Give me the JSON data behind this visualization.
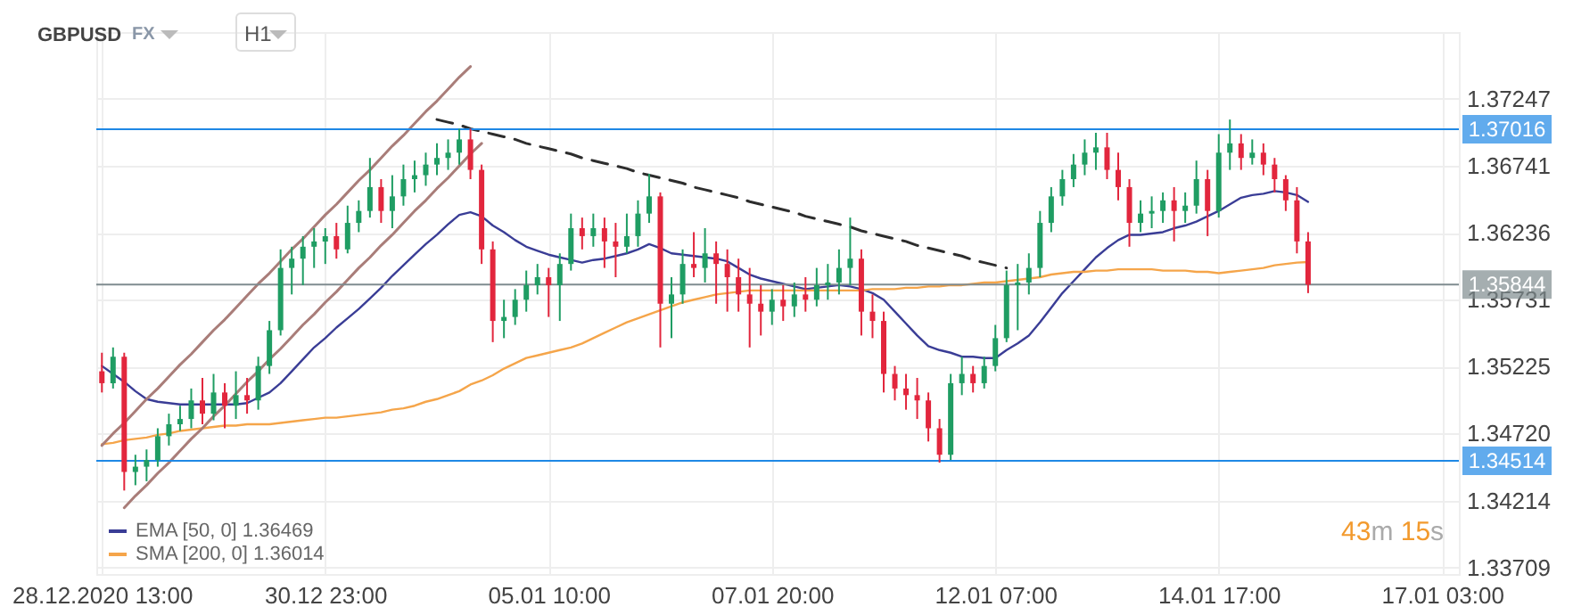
{
  "chart_data": {
    "type": "candlestick",
    "title": "GBPUSD",
    "annotations": [
      "FX",
      "H1",
      "43m 15s"
    ],
    "categories": [
      "28.12.2020 13:00",
      null,
      null,
      null,
      null,
      null,
      null,
      null,
      null,
      null,
      null,
      null,
      null,
      null,
      null,
      null,
      null,
      null,
      null,
      null,
      "30.12 23:00",
      null,
      null,
      null,
      null,
      null,
      null,
      null,
      null,
      null,
      null,
      null,
      null,
      null,
      null,
      null,
      null,
      null,
      null,
      null,
      "05.01 10:00",
      null,
      null,
      null,
      null,
      null,
      null,
      null,
      null,
      null,
      null,
      null,
      null,
      null,
      null,
      null,
      null,
      null,
      null,
      null,
      "07.01 20:00",
      null,
      null,
      null,
      null,
      null,
      null,
      null,
      null,
      null,
      null,
      null,
      null,
      null,
      null,
      null,
      null,
      null,
      null,
      null,
      "12.01 07:00",
      null,
      null,
      null,
      null,
      null,
      null,
      null,
      null,
      null,
      null,
      null,
      null,
      null,
      null,
      null,
      null,
      null,
      null,
      null,
      "14.01 17:00",
      null,
      null,
      null,
      null,
      null,
      null,
      null,
      null,
      null,
      null,
      null,
      null,
      null,
      null,
      null,
      null,
      null,
      null,
      null,
      "17.01 03:00",
      null
    ],
    "ohlc": [
      [
        1.3519,
        1.3533,
        1.3503,
        1.351
      ],
      [
        1.351,
        1.3537,
        1.3506,
        1.353
      ],
      [
        1.353,
        1.3533,
        1.3429,
        1.3443
      ],
      [
        1.3443,
        1.3456,
        1.3433,
        1.3447
      ],
      [
        1.3447,
        1.346,
        1.3436,
        1.3452
      ],
      [
        1.3452,
        1.3476,
        1.3447,
        1.347
      ],
      [
        1.347,
        1.3487,
        1.3463,
        1.3479
      ],
      [
        1.3479,
        1.3493,
        1.3474,
        1.3483
      ],
      [
        1.3483,
        1.3506,
        1.3476,
        1.3497
      ],
      [
        1.3497,
        1.3514,
        1.3479,
        1.3487
      ],
      [
        1.3487,
        1.3517,
        1.3482,
        1.3503
      ],
      [
        1.3503,
        1.351,
        1.3476,
        1.3493
      ],
      [
        1.3493,
        1.3519,
        1.3483,
        1.3501
      ],
      [
        1.3501,
        1.3514,
        1.3487,
        1.3497
      ],
      [
        1.3497,
        1.353,
        1.349,
        1.3523
      ],
      [
        1.3523,
        1.3557,
        1.3517,
        1.355
      ],
      [
        1.355,
        1.3611,
        1.3546,
        1.3597
      ],
      [
        1.3597,
        1.3613,
        1.3577,
        1.3604
      ],
      [
        1.3604,
        1.3621,
        1.3584,
        1.3613
      ],
      [
        1.3613,
        1.3627,
        1.3597,
        1.3617
      ],
      [
        1.3617,
        1.3627,
        1.36,
        1.3621
      ],
      [
        1.3621,
        1.3631,
        1.3604,
        1.3611
      ],
      [
        1.3611,
        1.3644,
        1.3608,
        1.3631
      ],
      [
        1.3631,
        1.3648,
        1.3624,
        1.364
      ],
      [
        1.364,
        1.368,
        1.3635,
        1.3658
      ],
      [
        1.3658,
        1.3664,
        1.3631,
        1.364
      ],
      [
        1.364,
        1.3667,
        1.3627,
        1.3651
      ],
      [
        1.3651,
        1.3675,
        1.3644,
        1.3664
      ],
      [
        1.3664,
        1.3678,
        1.3654,
        1.3667
      ],
      [
        1.3667,
        1.3684,
        1.3659,
        1.3675
      ],
      [
        1.3675,
        1.3691,
        1.3667,
        1.368
      ],
      [
        1.368,
        1.3694,
        1.3671,
        1.3684
      ],
      [
        1.3684,
        1.3702,
        1.3675,
        1.3694
      ],
      [
        1.3694,
        1.3702,
        1.3664,
        1.3671
      ],
      [
        1.3671,
        1.3675,
        1.36,
        1.3611
      ],
      [
        1.3611,
        1.3617,
        1.3541,
        1.3557
      ],
      [
        1.3557,
        1.3573,
        1.3544,
        1.356
      ],
      [
        1.356,
        1.3581,
        1.3554,
        1.3573
      ],
      [
        1.3573,
        1.3595,
        1.3564,
        1.3584
      ],
      [
        1.3584,
        1.36,
        1.3577,
        1.359
      ],
      [
        1.359,
        1.3597,
        1.356,
        1.3584
      ],
      [
        1.3584,
        1.3608,
        1.3557,
        1.36
      ],
      [
        1.36,
        1.3638,
        1.3595,
        1.3627
      ],
      [
        1.3627,
        1.3635,
        1.3611,
        1.3621
      ],
      [
        1.3621,
        1.3638,
        1.3613,
        1.3627
      ],
      [
        1.3627,
        1.3635,
        1.3597,
        1.3617
      ],
      [
        1.3617,
        1.3631,
        1.359,
        1.3613
      ],
      [
        1.3613,
        1.3638,
        1.3608,
        1.3621
      ],
      [
        1.3621,
        1.3648,
        1.3613,
        1.3638
      ],
      [
        1.3638,
        1.3668,
        1.3631,
        1.3651
      ],
      [
        1.3651,
        1.3654,
        1.3537,
        1.357
      ],
      [
        1.357,
        1.359,
        1.3544,
        1.3577
      ],
      [
        1.3577,
        1.3611,
        1.357,
        1.36
      ],
      [
        1.36,
        1.3624,
        1.359,
        1.3597
      ],
      [
        1.3597,
        1.3627,
        1.3586,
        1.3608
      ],
      [
        1.3608,
        1.3617,
        1.357,
        1.36
      ],
      [
        1.36,
        1.3611,
        1.3564,
        1.359
      ],
      [
        1.359,
        1.3604,
        1.3564,
        1.3577
      ],
      [
        1.3577,
        1.3597,
        1.3537,
        1.357
      ],
      [
        1.357,
        1.3584,
        1.3546,
        1.3564
      ],
      [
        1.3564,
        1.3581,
        1.3554,
        1.3573
      ],
      [
        1.3573,
        1.3584,
        1.3557,
        1.3568
      ],
      [
        1.3568,
        1.3586,
        1.356,
        1.3577
      ],
      [
        1.3577,
        1.359,
        1.3564,
        1.3573
      ],
      [
        1.3573,
        1.3597,
        1.3568,
        1.3584
      ],
      [
        1.3584,
        1.36,
        1.3573,
        1.3586
      ],
      [
        1.3586,
        1.3611,
        1.3577,
        1.3597
      ],
      [
        1.3597,
        1.3635,
        1.3584,
        1.3604
      ],
      [
        1.3604,
        1.3611,
        1.3546,
        1.3564
      ],
      [
        1.3564,
        1.3577,
        1.3544,
        1.3557
      ],
      [
        1.3557,
        1.3564,
        1.3503,
        1.3517
      ],
      [
        1.3517,
        1.3523,
        1.3497,
        1.3506
      ],
      [
        1.3506,
        1.3517,
        1.349,
        1.3501
      ],
      [
        1.3501,
        1.3514,
        1.3483,
        1.3497
      ],
      [
        1.3497,
        1.3503,
        1.3466,
        1.3476
      ],
      [
        1.3476,
        1.3483,
        1.345,
        1.3456
      ],
      [
        1.3456,
        1.3517,
        1.3452,
        1.351
      ],
      [
        1.351,
        1.353,
        1.3501,
        1.3517
      ],
      [
        1.3517,
        1.3523,
        1.3503,
        1.351
      ],
      [
        1.351,
        1.353,
        1.3506,
        1.3523
      ],
      [
        1.3523,
        1.3554,
        1.3519,
        1.3544
      ],
      [
        1.3544,
        1.3595,
        1.3541,
        1.3584
      ],
      [
        1.3584,
        1.36,
        1.355,
        1.3586
      ],
      [
        1.3586,
        1.3608,
        1.3577,
        1.3597
      ],
      [
        1.3597,
        1.364,
        1.359,
        1.3631
      ],
      [
        1.3631,
        1.3658,
        1.3624,
        1.3651
      ],
      [
        1.3651,
        1.3671,
        1.3644,
        1.3664
      ],
      [
        1.3664,
        1.3683,
        1.3658,
        1.3675
      ],
      [
        1.3675,
        1.3694,
        1.3667,
        1.3684
      ],
      [
        1.3684,
        1.3699,
        1.3671,
        1.3688
      ],
      [
        1.3688,
        1.3699,
        1.3664,
        1.3671
      ],
      [
        1.3671,
        1.3684,
        1.3648,
        1.3658
      ],
      [
        1.3658,
        1.3664,
        1.3613,
        1.3631
      ],
      [
        1.3631,
        1.3648,
        1.3624,
        1.3638
      ],
      [
        1.3638,
        1.3651,
        1.3627,
        1.364
      ],
      [
        1.364,
        1.3654,
        1.3631,
        1.3648
      ],
      [
        1.3648,
        1.3658,
        1.3617,
        1.364
      ],
      [
        1.364,
        1.3654,
        1.3631,
        1.3644
      ],
      [
        1.3644,
        1.3678,
        1.3638,
        1.3664
      ],
      [
        1.3664,
        1.3671,
        1.3621,
        1.364
      ],
      [
        1.364,
        1.3698,
        1.3635,
        1.3684
      ],
      [
        1.3684,
        1.3709,
        1.3671,
        1.3691
      ],
      [
        1.3691,
        1.3698,
        1.3671,
        1.368
      ],
      [
        1.368,
        1.3694,
        1.3675,
        1.3684
      ],
      [
        1.3684,
        1.3691,
        1.3667,
        1.3675
      ],
      [
        1.3675,
        1.368,
        1.3654,
        1.3664
      ],
      [
        1.3664,
        1.3667,
        1.364,
        1.3648
      ],
      [
        1.3648,
        1.3658,
        1.3608,
        1.3617
      ],
      [
        1.3617,
        1.3624,
        1.3578,
        1.35844
      ],
      null,
      null,
      null,
      null,
      null,
      null,
      null,
      null,
      null,
      null,
      null,
      null,
      null
    ],
    "colors": [
      "#e2263d",
      "#1f9d63",
      "#e2263d",
      "#1f9d63",
      "#1f9d63",
      "#1f9d63",
      "#1f9d63",
      "#1f9d63",
      "#1f9d63",
      "#e2263d",
      "#1f9d63",
      "#e2263d",
      "#1f9d63",
      "#e2263d",
      "#1f9d63",
      "#1f9d63",
      "#1f9d63",
      "#1f9d63",
      "#1f9d63",
      "#1f9d63",
      "#1f9d63",
      "#e2263d",
      "#1f9d63",
      "#1f9d63",
      "#1f9d63",
      "#e2263d",
      "#1f9d63",
      "#1f9d63",
      "#1f9d63",
      "#1f9d63",
      "#1f9d63",
      "#1f9d63",
      "#1f9d63",
      "#e2263d",
      "#e2263d",
      "#e2263d",
      "#1f9d63",
      "#1f9d63",
      "#1f9d63",
      "#1f9d63",
      "#e2263d",
      "#1f9d63",
      "#1f9d63",
      "#e2263d",
      "#1f9d63",
      "#e2263d",
      "#e2263d",
      "#1f9d63",
      "#1f9d63",
      "#1f9d63",
      "#e2263d",
      "#1f9d63",
      "#1f9d63",
      "#e2263d",
      "#1f9d63",
      "#e2263d",
      "#e2263d",
      "#e2263d",
      "#e2263d",
      "#e2263d",
      "#1f9d63",
      "#e2263d",
      "#1f9d63",
      "#e2263d",
      "#1f9d63",
      "#1f9d63",
      "#1f9d63",
      "#1f9d63",
      "#e2263d",
      "#e2263d",
      "#e2263d",
      "#e2263d",
      "#e2263d",
      "#e2263d",
      "#e2263d",
      "#e2263d",
      "#1f9d63",
      "#1f9d63",
      "#e2263d",
      "#1f9d63",
      "#1f9d63",
      "#1f9d63",
      "#1f9d63",
      "#1f9d63",
      "#1f9d63",
      "#1f9d63",
      "#1f9d63",
      "#1f9d63",
      "#1f9d63",
      "#1f9d63",
      "#e2263d",
      "#e2263d",
      "#e2263d",
      "#1f9d63",
      "#1f9d63",
      "#1f9d63",
      "#e2263d",
      "#1f9d63",
      "#1f9d63",
      "#e2263d",
      "#1f9d63",
      "#1f9d63",
      "#e2263d",
      "#1f9d63",
      "#e2263d",
      "#e2263d",
      "#e2263d",
      "#e2263d",
      "#e2263d",
      null,
      null,
      null,
      null,
      null,
      null,
      null,
      null,
      null,
      null,
      null,
      null,
      null
    ],
    "series": [
      {
        "type": "line",
        "name": "EMA [50, 0] 1.36469",
        "color": "#3a3d96",
        "values": [
          1.3523,
          1.3517,
          1.3511,
          1.3504,
          1.3498,
          1.3496,
          1.3495,
          1.3494,
          1.3494,
          1.3494,
          1.3494,
          1.3494,
          1.3494,
          1.3495,
          1.3499,
          1.3503,
          1.351,
          1.3519,
          1.3528,
          1.3537,
          1.3544,
          1.3552,
          1.3559,
          1.3566,
          1.3574,
          1.3582,
          1.3591,
          1.3599,
          1.3607,
          1.3615,
          1.3622,
          1.363,
          1.3637,
          1.3639,
          1.3636,
          1.3629,
          1.3624,
          1.3618,
          1.3613,
          1.361,
          1.3607,
          1.3605,
          1.3603,
          1.3601,
          1.3603,
          1.3604,
          1.3606,
          1.3608,
          1.3611,
          1.3615,
          1.3612,
          1.3608,
          1.3607,
          1.3606,
          1.3605,
          1.3604,
          1.3602,
          1.3597,
          1.3592,
          1.3589,
          1.3587,
          1.3585,
          1.3583,
          1.3581,
          1.3582,
          1.3583,
          1.3584,
          1.3583,
          1.3581,
          1.3578,
          1.3573,
          1.3564,
          1.3555,
          1.3546,
          1.3538,
          1.3535,
          1.3533,
          1.353,
          1.353,
          1.3529,
          1.3529,
          1.3535,
          1.354,
          1.3546,
          1.3556,
          1.3567,
          1.3578,
          1.3587,
          1.3596,
          1.3605,
          1.3612,
          1.3618,
          1.3622,
          1.3622,
          1.3623,
          1.3624,
          1.3627,
          1.3629,
          1.3632,
          1.3636,
          1.364,
          1.3645,
          1.365,
          1.3652,
          1.3653,
          1.3655,
          1.3654,
          1.3652,
          1.36469,
          null,
          null,
          null,
          null,
          null,
          null,
          null,
          null,
          null,
          null,
          null,
          null,
          null
        ]
      },
      {
        "type": "line",
        "name": "SMA [200, 0] 1.36014",
        "color": "#f5a54a",
        "values": [
          1.3464,
          1.3465,
          1.3467,
          1.3468,
          1.3469,
          1.3471,
          1.3472,
          1.3474,
          1.3475,
          1.3476,
          1.3477,
          1.3478,
          1.3478,
          1.3479,
          1.3479,
          1.3479,
          1.348,
          1.3481,
          1.3482,
          1.3483,
          1.3484,
          1.3484,
          1.3485,
          1.3486,
          1.3487,
          1.3488,
          1.349,
          1.3491,
          1.3493,
          1.3496,
          1.3498,
          1.3501,
          1.3504,
          1.3509,
          1.3512,
          1.3516,
          1.3521,
          1.3525,
          1.3529,
          1.3531,
          1.3533,
          1.3535,
          1.3537,
          1.354,
          1.3544,
          1.3548,
          1.3552,
          1.3556,
          1.3559,
          1.3562,
          1.3565,
          1.3568,
          1.3571,
          1.3573,
          1.3575,
          1.3577,
          1.3578,
          1.3579,
          1.358,
          1.358,
          1.358,
          1.358,
          1.358,
          1.358,
          1.358,
          1.358,
          1.358,
          1.358,
          1.358,
          1.3581,
          1.3581,
          1.3581,
          1.3582,
          1.3582,
          1.3583,
          1.3583,
          1.3584,
          1.3584,
          1.3585,
          1.3586,
          1.3586,
          1.3587,
          1.3588,
          1.3589,
          1.359,
          1.3592,
          1.3593,
          1.3594,
          1.3594,
          1.3595,
          1.3595,
          1.3596,
          1.3596,
          1.3596,
          1.3596,
          1.3595,
          1.3595,
          1.3595,
          1.3594,
          1.3594,
          1.3593,
          1.3594,
          1.3595,
          1.3596,
          1.3597,
          1.3599,
          1.36,
          1.3601,
          1.36014,
          null,
          null,
          null,
          null,
          null,
          null,
          null,
          null,
          null,
          null,
          null,
          null,
          null
        ]
      },
      {
        "type": "line",
        "color": "#a97d79",
        "values": [
          1.3463,
          1.3472,
          1.348,
          1.3489,
          1.3498,
          1.3506,
          1.3515,
          1.3524,
          1.3532,
          1.3541,
          1.355,
          1.3558,
          1.3567,
          1.3576,
          1.3585,
          1.3593,
          1.3602,
          1.3611,
          1.3619,
          1.3628,
          1.3637,
          1.3645,
          1.3654,
          1.3663,
          1.3671,
          1.368,
          1.3689,
          1.3697,
          1.3706,
          1.3715,
          1.3723,
          1.3732,
          1.3741,
          1.3749,
          null,
          null,
          null,
          null,
          null,
          null,
          null,
          null,
          null,
          null,
          null,
          null,
          null,
          null,
          null,
          null,
          null,
          null,
          null,
          null,
          null,
          null,
          null,
          null,
          null,
          null,
          null,
          null,
          null,
          null,
          null,
          null,
          null,
          null,
          null,
          null,
          null,
          null,
          null,
          null,
          null,
          null,
          null,
          null,
          null,
          null,
          null,
          null,
          null,
          null,
          null,
          null,
          null,
          null,
          null,
          null,
          null,
          null,
          null,
          null,
          null,
          null,
          null,
          null,
          null,
          null,
          null,
          null,
          null,
          null,
          null,
          null,
          null,
          null,
          null,
          null,
          null,
          null,
          null,
          null,
          null,
          null,
          null,
          null,
          null,
          null,
          null,
          null
        ]
      },
      {
        "type": "line",
        "color": "#a97d79",
        "values": [
          null,
          null,
          1.3416,
          1.3425,
          1.3433,
          1.3442,
          1.345,
          1.3459,
          1.3468,
          1.3476,
          1.3485,
          1.3493,
          1.3502,
          1.3511,
          1.3519,
          1.3528,
          1.3536,
          1.3545,
          1.3554,
          1.3562,
          1.3571,
          1.3579,
          1.3588,
          1.3597,
          1.3605,
          1.3614,
          1.3622,
          1.3631,
          1.364,
          1.3648,
          1.3657,
          1.3665,
          1.3674,
          1.3683,
          1.3691,
          null,
          null,
          null,
          null,
          null,
          null,
          null,
          null,
          null,
          null,
          null,
          null,
          null,
          null,
          null,
          null,
          null,
          null,
          null,
          null,
          null,
          null,
          null,
          null,
          null,
          null,
          null,
          null,
          null,
          null,
          null,
          null,
          null,
          null,
          null,
          null,
          null,
          null,
          null,
          null,
          null,
          null,
          null,
          null,
          null,
          null,
          null,
          null,
          null,
          null,
          null,
          null,
          null,
          null,
          null,
          null,
          null,
          null,
          null,
          null,
          null,
          null,
          null,
          null,
          null,
          null,
          null,
          null,
          null,
          null,
          null,
          null,
          null,
          null,
          null,
          null,
          null,
          null,
          null,
          null,
          null,
          null,
          null,
          null,
          null,
          null,
          null
        ]
      },
      {
        "type": "line",
        "color": "#2d2d2d",
        "line_style": "dashed",
        "values": [
          null,
          null,
          null,
          null,
          null,
          null,
          null,
          null,
          null,
          null,
          null,
          null,
          null,
          null,
          null,
          null,
          null,
          null,
          null,
          null,
          null,
          null,
          null,
          null,
          null,
          null,
          null,
          null,
          null,
          null,
          1.3709,
          1.3707,
          1.3705,
          1.3702,
          1.37,
          1.3698,
          1.3696,
          1.3694,
          1.3691,
          1.3689,
          1.3687,
          1.3685,
          1.3683,
          1.368,
          1.3678,
          1.3676,
          1.3674,
          1.3672,
          1.3669,
          1.3667,
          1.3665,
          1.3663,
          1.3661,
          1.3658,
          1.3656,
          1.3654,
          1.3652,
          1.365,
          1.3647,
          1.3645,
          1.3643,
          1.3641,
          1.3639,
          1.3636,
          1.3634,
          1.3632,
          1.363,
          1.3628,
          1.3625,
          1.3623,
          1.3621,
          1.3619,
          1.3617,
          1.3614,
          1.3612,
          1.361,
          1.3608,
          1.3606,
          1.3603,
          1.3601,
          1.3599,
          1.3597,
          null,
          null,
          null,
          null,
          null,
          null,
          null,
          null,
          null,
          null,
          null,
          null,
          null,
          null,
          null,
          null,
          null,
          null,
          null,
          null,
          null,
          null,
          null,
          null,
          null,
          null,
          null,
          null,
          null,
          null,
          null,
          null,
          null,
          null,
          null,
          null,
          null,
          null,
          null,
          null
        ]
      }
    ],
    "ylim": [
      1.3366,
      1.3775
    ],
    "yticks": [
      1.33709,
      1.34214,
      {
        "value": 1.3472,
        "label": "1.34720"
      },
      1.35225,
      1.35731,
      1.36236,
      1.36741,
      1.37247
    ],
    "ref_lines": [
      {
        "axis": "y",
        "value": 1.37016,
        "label": "1.37016",
        "color": "#1e88e5"
      },
      {
        "axis": "y",
        "value": 1.34514,
        "label": "1.34514",
        "color": "#1e88e5"
      },
      {
        "axis": "y",
        "value": 1.35844,
        "label": "1.35844",
        "color": "#7f8b8f"
      }
    ],
    "grid": true,
    "legend": "bottom left"
  }
}
